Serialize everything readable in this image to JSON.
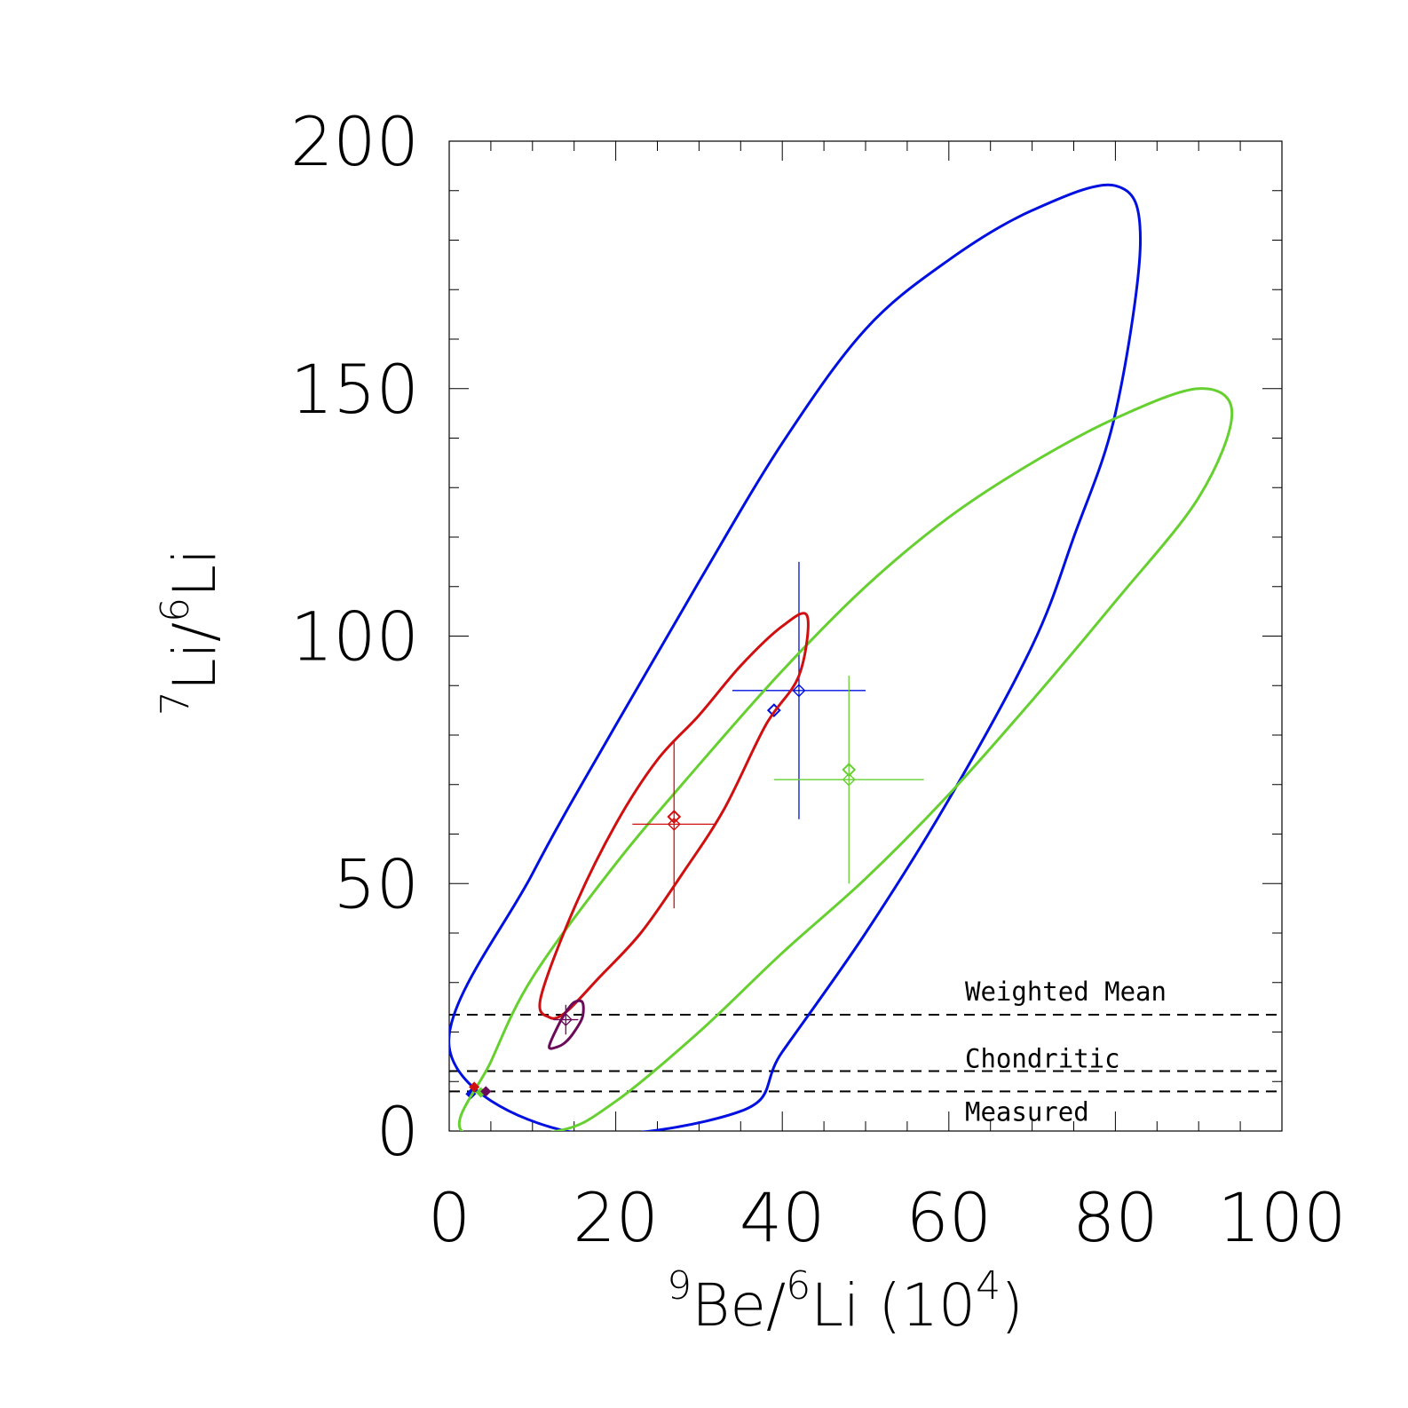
{
  "chart_data": {
    "type": "scatter",
    "title": "",
    "xlabel": {
      "sup1": "9",
      "mid": "Be/",
      "sup2": "6",
      "end": "Li (10",
      "sup3": "4",
      "close": ")"
    },
    "ylabel": {
      "sup1": "7",
      "mid": "Li/",
      "sup2": "6",
      "end": "Li"
    },
    "xlim": [
      0,
      100
    ],
    "ylim": [
      0,
      200
    ],
    "x_ticks": [
      0,
      20,
      40,
      60,
      80,
      100
    ],
    "y_ticks": [
      0,
      50,
      100,
      150,
      200
    ],
    "x_tick_labels": [
      "0",
      "20",
      "40",
      "60",
      "80",
      "100"
    ],
    "y_tick_labels": [
      "0",
      "50",
      "100",
      "150",
      "200"
    ],
    "grid": false,
    "reference_lines": [
      {
        "name": "Weighted Mean",
        "y": 23.5,
        "style": "dashed",
        "color": "#000000"
      },
      {
        "name": "Chondritic",
        "y": 12.1,
        "style": "dashed",
        "color": "#000000"
      },
      {
        "name": "Measured",
        "y": 8.0,
        "style": "dashed",
        "color": "#000000"
      }
    ],
    "series": [
      {
        "color": "#0010e0",
        "ellipse": [
          [
            0,
            17
          ],
          [
            10,
            52
          ],
          [
            20,
            82
          ],
          [
            30,
            111
          ],
          [
            40,
            139
          ],
          [
            50,
            162
          ],
          [
            60,
            176
          ],
          [
            70,
            186
          ],
          [
            80,
            191
          ],
          [
            83,
            180
          ],
          [
            80,
            145
          ],
          [
            75,
            120
          ],
          [
            70,
            98
          ],
          [
            60,
            67
          ],
          [
            50,
            40
          ],
          [
            40,
            16
          ],
          [
            35,
            4
          ],
          [
            14,
            0
          ]
        ],
        "points": [
          {
            "x": 39,
            "y": 85
          },
          {
            "x": 42,
            "y": 89,
            "xerr": 8,
            "yerr": 26
          }
        ],
        "anchor": {
          "x": 2.6,
          "y": 7.5
        }
      },
      {
        "color": "#66d030",
        "ellipse": [
          [
            1.5,
            0
          ],
          [
            5,
            14
          ],
          [
            10,
            31
          ],
          [
            20,
            54
          ],
          [
            30,
            74
          ],
          [
            40,
            93
          ],
          [
            50,
            110
          ],
          [
            60,
            124
          ],
          [
            70,
            135
          ],
          [
            80,
            144
          ],
          [
            90,
            150
          ],
          [
            94,
            145
          ],
          [
            90,
            128
          ],
          [
            80,
            107
          ],
          [
            70,
            87
          ],
          [
            60,
            68
          ],
          [
            50,
            51
          ],
          [
            40,
            36
          ],
          [
            30,
            20
          ],
          [
            20,
            6
          ],
          [
            13,
            0
          ]
        ],
        "points": [
          {
            "x": 48,
            "y": 73
          },
          {
            "x": 48,
            "y": 71,
            "xerr": 9,
            "yerr": 21
          }
        ],
        "anchor": {
          "x": 3.8,
          "y": 7.8
        }
      },
      {
        "color": "#d01010",
        "ellipse": [
          [
            11,
            27
          ],
          [
            15,
            45
          ],
          [
            20,
            62
          ],
          [
            25,
            75
          ],
          [
            30,
            84
          ],
          [
            35,
            94
          ],
          [
            40,
            102
          ],
          [
            43,
            104
          ],
          [
            42,
            92
          ],
          [
            38,
            82
          ],
          [
            33,
            65
          ],
          [
            28,
            52
          ],
          [
            23,
            40
          ],
          [
            18,
            31
          ],
          [
            14,
            24
          ],
          [
            12,
            23
          ]
        ],
        "points": [
          {
            "x": 27,
            "y": 63.5
          },
          {
            "x": 27,
            "y": 62,
            "xerr": 5,
            "yerr": 17
          }
        ],
        "anchor": {
          "x": 3.0,
          "y": 8.9
        }
      },
      {
        "color": "#6c0a5a",
        "ellipse": [
          [
            12,
            17
          ],
          [
            13,
            21
          ],
          [
            14,
            24
          ],
          [
            15,
            26
          ],
          [
            16,
            26
          ],
          [
            16,
            23
          ],
          [
            15,
            20
          ],
          [
            14,
            18
          ],
          [
            13,
            17
          ]
        ],
        "points": [
          {
            "x": 14,
            "y": 22.5,
            "xerr": 1.5,
            "yerr": 3
          }
        ],
        "anchor": {
          "x": 4.4,
          "y": 8.0
        }
      }
    ]
  }
}
